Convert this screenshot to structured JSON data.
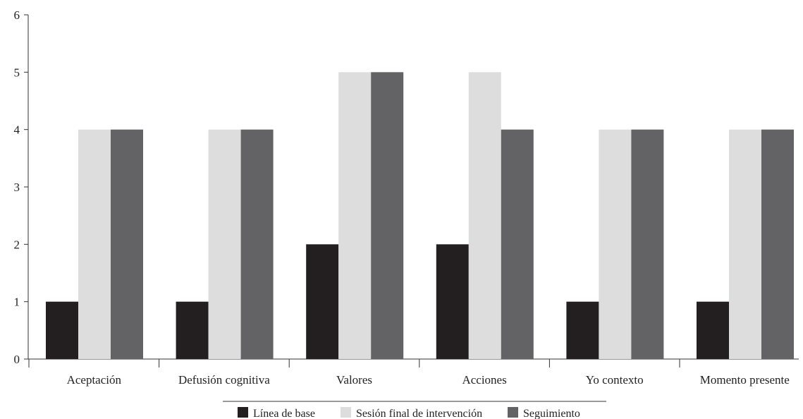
{
  "chart_data": {
    "type": "bar",
    "title": "",
    "xlabel": "",
    "ylabel": "",
    "ylim": [
      0,
      6
    ],
    "yticks": [
      "0",
      "1",
      "2",
      "3",
      "4",
      "5",
      "6"
    ],
    "categories": [
      "Aceptación",
      "Defusión cognitiva",
      "Valores",
      "Acciones",
      "Yo contexto",
      "Momento presente"
    ],
    "series": [
      {
        "name": "Línea de base",
        "color": "#231f20",
        "values": [
          1,
          1,
          2,
          2,
          1,
          1
        ]
      },
      {
        "name": "Sesión final de intervención",
        "color": "#dddddd",
        "values": [
          4,
          4,
          5,
          5,
          4,
          4
        ]
      },
      {
        "name": "Seguimiento",
        "color": "#636365",
        "values": [
          4,
          4,
          5,
          4,
          4,
          4
        ]
      }
    ],
    "grid": false,
    "legend_position": "bottom"
  }
}
